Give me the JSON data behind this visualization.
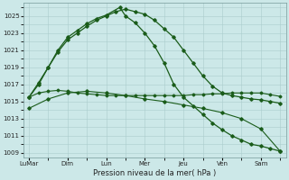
{
  "background_color": "#cce8e8",
  "grid_color": "#aacccc",
  "line_color": "#1a5c1a",
  "xlabel": "Pression niveau de la mer( hPa )",
  "ylim": [
    1008.5,
    1026.5
  ],
  "yticks": [
    1009,
    1011,
    1013,
    1015,
    1017,
    1019,
    1021,
    1023,
    1025
  ],
  "xtick_labels": [
    "LuMar",
    "Dim",
    "Lun",
    "Mer",
    "Jeu",
    "Ven",
    "Sam"
  ],
  "xtick_pos": [
    0,
    2,
    4,
    6,
    8,
    10,
    12
  ],
  "xlim": [
    -0.3,
    13.3
  ],
  "line1_x": [
    0,
    0.5,
    1,
    1.5,
    2,
    2.5,
    3,
    3.5,
    4,
    4.5,
    5,
    5.5,
    6,
    6.5,
    7,
    7.5,
    8,
    8.5,
    9,
    9.5,
    10,
    10.5,
    11,
    11.5,
    12,
    12.5,
    13
  ],
  "line1_y": [
    1015.5,
    1016.0,
    1016.2,
    1016.3,
    1016.2,
    1016.0,
    1015.9,
    1015.8,
    1015.7,
    1015.7,
    1015.7,
    1015.7,
    1015.7,
    1015.7,
    1015.7,
    1015.7,
    1015.7,
    1015.8,
    1015.8,
    1015.9,
    1015.9,
    1016.0,
    1016.0,
    1016.0,
    1016.0,
    1015.8,
    1015.6
  ],
  "line2_x": [
    0,
    1,
    2,
    3,
    4,
    5,
    6,
    7,
    8,
    9,
    10,
    11,
    12,
    13
  ],
  "line2_y": [
    1014.2,
    1015.3,
    1016.0,
    1016.2,
    1016.0,
    1015.7,
    1015.3,
    1015.0,
    1014.6,
    1014.2,
    1013.7,
    1013.0,
    1011.8,
    1009.2
  ],
  "line3_x": [
    0,
    0.5,
    1,
    1.5,
    2,
    2.5,
    3,
    3.5,
    4,
    4.5,
    5,
    5.5,
    6,
    6.5,
    7,
    7.5,
    8,
    8.5,
    9,
    9.5,
    10,
    10.5,
    11,
    11.5,
    12,
    12.5,
    13
  ],
  "line3_y": [
    1015.5,
    1017.2,
    1019.0,
    1020.8,
    1022.2,
    1023.0,
    1023.8,
    1024.5,
    1025.0,
    1025.5,
    1025.8,
    1025.5,
    1025.2,
    1024.5,
    1023.5,
    1022.5,
    1021.0,
    1019.5,
    1018.0,
    1016.8,
    1016.0,
    1015.7,
    1015.5,
    1015.3,
    1015.2,
    1015.0,
    1014.8
  ],
  "line4_x": [
    0,
    0.5,
    1,
    1.5,
    2,
    2.5,
    3,
    3.5,
    4,
    4.7,
    5,
    5.5,
    6,
    6.5,
    7,
    7.5,
    8,
    8.5,
    9,
    9.5,
    10,
    10.5,
    11,
    11.5,
    12,
    12.5,
    13
  ],
  "line4_y": [
    1015.5,
    1017.0,
    1019.0,
    1021.0,
    1022.5,
    1023.3,
    1024.1,
    1024.7,
    1025.1,
    1026.0,
    1025.0,
    1024.2,
    1023.0,
    1021.5,
    1019.5,
    1017.0,
    1015.5,
    1014.5,
    1013.5,
    1012.5,
    1011.7,
    1011.0,
    1010.5,
    1010.0,
    1009.8,
    1009.5,
    1009.2
  ]
}
